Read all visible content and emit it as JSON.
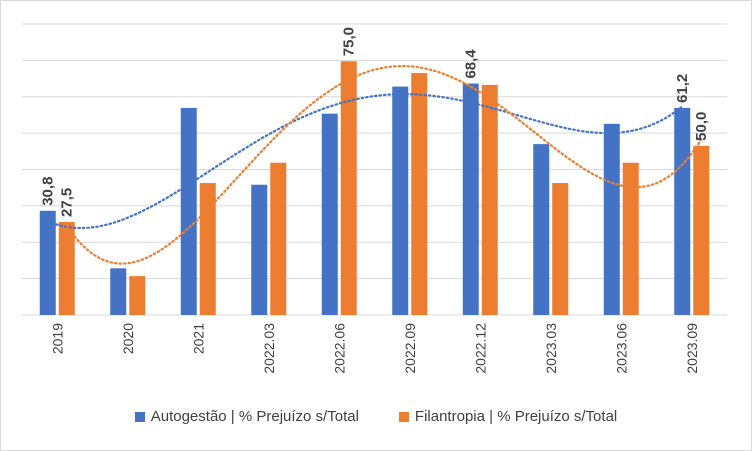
{
  "chart_data": {
    "type": "bar",
    "categories": [
      "2019",
      "2020",
      "2021",
      "2022.03",
      "2022.06",
      "2022.09",
      "2022.12",
      "2023.03",
      "2023.06",
      "2023.09"
    ],
    "series": [
      {
        "name": "Autogestão | % Prejuízo s/Total",
        "color": "#4472c4",
        "values": [
          30.8,
          13.8,
          61.2,
          38.5,
          59.5,
          67.5,
          68.4,
          50.5,
          56.5,
          61.2
        ],
        "labels": [
          "30,8",
          "",
          "",
          "",
          "",
          "",
          "68,4",
          "",
          "",
          "61,2"
        ]
      },
      {
        "name": "Filantropia | % Prejuízo s/Total",
        "color": "#ed7d31",
        "values": [
          27.5,
          11.5,
          39.0,
          45.0,
          75.0,
          71.5,
          68.0,
          39.0,
          45.0,
          50.0
        ],
        "labels": [
          "27,5",
          "",
          "",
          "",
          "75,0",
          "",
          "",
          "",
          "",
          "50,0"
        ]
      }
    ],
    "ylim": [
      0,
      86
    ],
    "grid": true,
    "trendlines": "polynomial, dotted",
    "legend_position": "bottom"
  }
}
